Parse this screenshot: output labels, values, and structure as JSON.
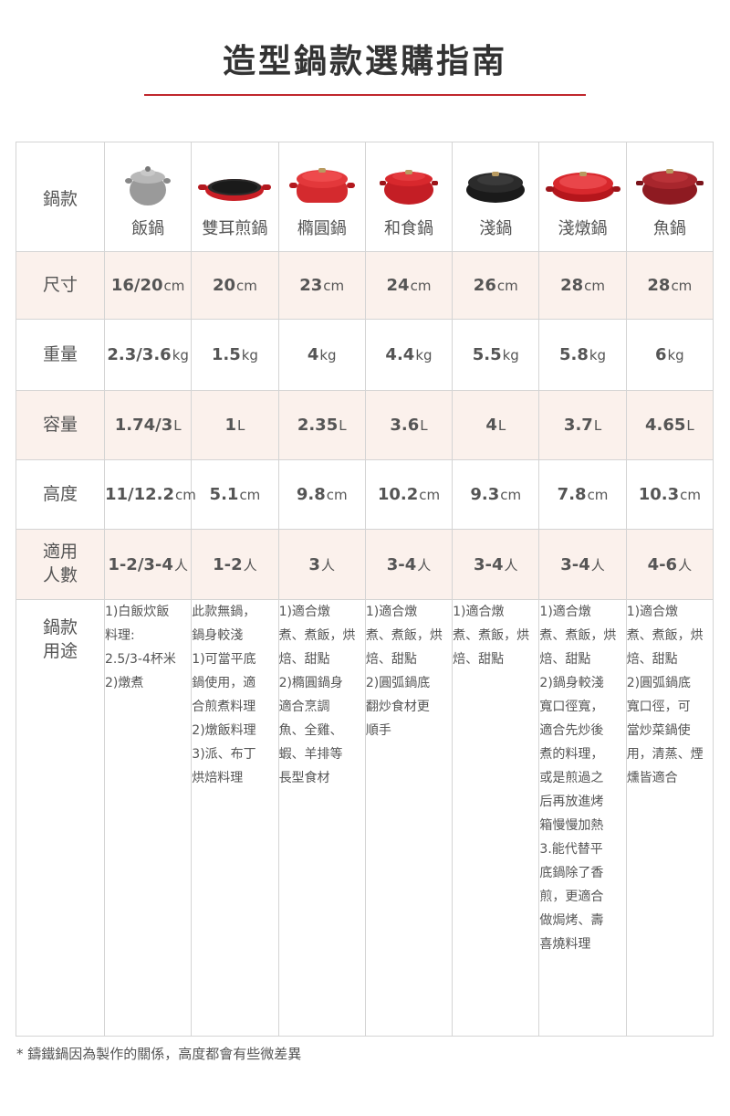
{
  "title": "造型鍋款選購指南",
  "labels": {
    "model": "鍋款",
    "size": "尺寸",
    "weight": "重量",
    "capacity": "容量",
    "height": "高度",
    "people_1": "適用",
    "people_2": "人數",
    "usage_1": "鍋款",
    "usage_2": "用途"
  },
  "pots": [
    {
      "name": "飯鍋",
      "icon": "grey-rice-pot-icon",
      "size": "16/20",
      "size_unit": "cm",
      "weight": "2.3/3.6",
      "weight_unit": "kg",
      "capacity": "1.74/3",
      "capacity_unit": "L",
      "height": "11/12.2",
      "height_unit": "cm",
      "people": "1-2/3-4",
      "people_unit": "人",
      "usage": [
        "1)白飯炊飯",
        "料理:",
        "2.5/3-4杯米",
        "2)燉煮"
      ]
    },
    {
      "name": "雙耳煎鍋",
      "icon": "double-handle-pan-icon",
      "size": "20",
      "size_unit": "cm",
      "weight": "1.5",
      "weight_unit": "kg",
      "capacity": "1",
      "capacity_unit": "L",
      "height": "5.1",
      "height_unit": "cm",
      "people": "1-2",
      "people_unit": "人",
      "usage": [
        "此款無鍋，",
        "鍋身較淺",
        "1)可當平底",
        "鍋使用，適",
        "合煎煮料理",
        "2)燉飯料理",
        "3)派、布丁",
        "烘焙料理"
      ]
    },
    {
      "name": "橢圓鍋",
      "icon": "oval-pot-icon",
      "size": "23",
      "size_unit": "cm",
      "weight": "4",
      "weight_unit": "kg",
      "capacity": "2.35",
      "capacity_unit": "L",
      "height": "9.8",
      "height_unit": "cm",
      "people": "3",
      "people_unit": "人",
      "usage": [
        "1)適合燉",
        "煮、煮飯，烘",
        "焙、甜點",
        "2)橢圓鍋身",
        "適合烹調",
        "魚、全雞、",
        "蝦、羊排等",
        "長型食材"
      ]
    },
    {
      "name": "和食鍋",
      "icon": "japanese-pot-icon",
      "size": "24",
      "size_unit": "cm",
      "weight": "4.4",
      "weight_unit": "kg",
      "capacity": "3.6",
      "capacity_unit": "L",
      "height": "10.2",
      "height_unit": "cm",
      "people": "3-4",
      "people_unit": "人",
      "usage": [
        "1)適合燉",
        "煮、煮飯，烘",
        "焙、甜點",
        "2)圓弧鍋底",
        "翻炒食材更",
        "順手"
      ]
    },
    {
      "name": "淺鍋",
      "icon": "black-shallow-pot-icon",
      "size": "26",
      "size_unit": "cm",
      "weight": "5.5",
      "weight_unit": "kg",
      "capacity": "4",
      "capacity_unit": "L",
      "height": "9.3",
      "height_unit": "cm",
      "people": "3-4",
      "people_unit": "人",
      "usage": [
        "1)適合燉",
        "煮、煮飯，烘",
        "焙、甜點"
      ]
    },
    {
      "name": "淺燉鍋",
      "icon": "shallow-braiser-icon",
      "size": "28",
      "size_unit": "cm",
      "weight": "5.8",
      "weight_unit": "kg",
      "capacity": "3.7",
      "capacity_unit": "L",
      "height": "7.8",
      "height_unit": "cm",
      "people": "3-4",
      "people_unit": "人",
      "usage": [
        "1)適合燉",
        "煮、煮飯，烘",
        "焙、甜點",
        "2)鍋身較淺",
        "寬口徑寬，",
        "適合先炒後",
        "煮的料理，",
        "或是煎過之",
        "后再放進烤",
        "箱慢慢加熱",
        "3.能代替平",
        "底鍋除了香",
        "煎，更適合",
        "做焗烤、壽",
        "喜燒料理"
      ]
    },
    {
      "name": "魚鍋",
      "icon": "fish-pot-icon",
      "size": "28",
      "size_unit": "cm",
      "weight": "6",
      "weight_unit": "kg",
      "capacity": "4.65",
      "capacity_unit": "L",
      "height": "10.3",
      "height_unit": "cm",
      "people": "4-6",
      "people_unit": "人",
      "usage": [
        "1)適合燉",
        "煮、煮飯，烘",
        "焙、甜點",
        "2)圓弧鍋底",
        "寬口徑，可",
        "當炒菜鍋使",
        "用，清蒸、煙",
        "燻皆適合"
      ]
    }
  ],
  "footnote": "* 鑄鐵鍋因為製作的關係，高度都會有些微差異"
}
